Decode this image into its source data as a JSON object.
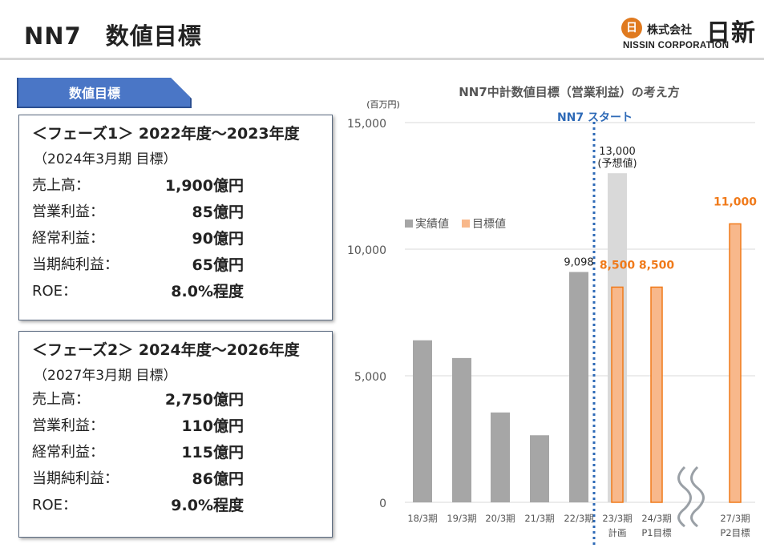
{
  "page_title": "NN7　数値目標",
  "logo": {
    "mark": "日",
    "company_prefix": "株式会社",
    "company_name": "日新",
    "english_name": "NISSIN CORPORATION"
  },
  "section_tag": "数値目標",
  "phase1": {
    "heading": "＜フェーズ1＞ 2022年度～2023年度",
    "subheading": "（2024年3月期 目標）",
    "rows": [
      {
        "label": "売上高：",
        "value": "1,900億円"
      },
      {
        "label": "営業利益：",
        "value": "85億円"
      },
      {
        "label": "経常利益：",
        "value": "90億円"
      },
      {
        "label": "当期純利益：",
        "value": "65億円"
      },
      {
        "label": "ROE：",
        "value": "8.0%程度"
      }
    ]
  },
  "phase2": {
    "heading": "＜フェーズ2＞ 2024年度～2026年度",
    "subheading": "（2027年3月期 目標）",
    "rows": [
      {
        "label": "売上高：",
        "value": "2,750億円"
      },
      {
        "label": "営業利益：",
        "value": "110億円"
      },
      {
        "label": "経常利益：",
        "value": "115億円"
      },
      {
        "label": "当期純利益：",
        "value": "86億円"
      },
      {
        "label": "ROE：",
        "value": "9.0%程度"
      }
    ]
  },
  "chart_data": {
    "type": "bar",
    "title": "NN7中計数値目標（営業利益）の考え方",
    "unit_label": "(百万円)",
    "ylim": [
      0,
      15000
    ],
    "yticks": [
      0,
      5000,
      10000,
      15000
    ],
    "ytick_labels": [
      "0",
      "5,000",
      "10,000",
      "15,000"
    ],
    "grid": true,
    "legend_position": "middle-left",
    "start_marker_label": "NN7 スタート",
    "categories": [
      {
        "line1": "18/3期",
        "line2": ""
      },
      {
        "line1": "19/3期",
        "line2": ""
      },
      {
        "line1": "20/3期",
        "line2": ""
      },
      {
        "line1": "21/3期",
        "line2": ""
      },
      {
        "line1": "22/3期",
        "line2": ""
      },
      {
        "line1": "23/3期",
        "line2": "計画"
      },
      {
        "line1": "24/3期",
        "line2": "P1目標"
      },
      {
        "line1": "27/3期",
        "line2": "P2目標"
      }
    ],
    "series": [
      {
        "name": "実績値",
        "color": "#a6a6a6",
        "values": [
          6400,
          5700,
          3550,
          2650,
          9098,
          13000,
          null,
          null
        ],
        "labels": [
          "",
          "",
          "",
          "",
          "9,098",
          "13,000\n(予想値)",
          "",
          ""
        ]
      },
      {
        "name": "目標値",
        "color": "#f8b88b",
        "stroke": "#f07a1a",
        "values": [
          null,
          null,
          null,
          null,
          null,
          8500,
          8500,
          11000
        ],
        "labels": [
          "",
          "",
          "",
          "",
          "",
          "8,500",
          "8,500",
          "11,000"
        ]
      }
    ],
    "forecast_color": "#d9d9d9",
    "label_color_target": "#f07a1a"
  }
}
